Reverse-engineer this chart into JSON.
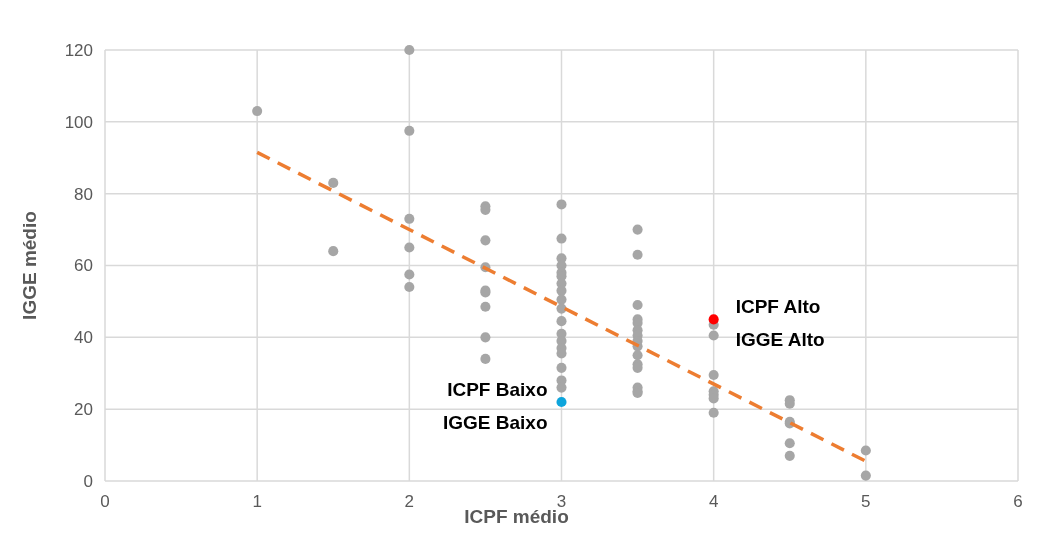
{
  "chart_data": {
    "type": "scatter",
    "xlabel": "ICPF médio",
    "ylabel": "IGGE médio",
    "xlim": [
      0,
      6
    ],
    "xticks": [
      0,
      1,
      2,
      3,
      4,
      5,
      6
    ],
    "ylim": [
      0,
      120
    ],
    "yticks": [
      0,
      20,
      40,
      60,
      80,
      100,
      120
    ],
    "grid": true,
    "marker": "circle",
    "series": [
      {
        "color": "#a6a6a6",
        "x": [
          1,
          1.5,
          1.5,
          2,
          2,
          2,
          2,
          2,
          2,
          2.5,
          2.5,
          2.5,
          2.5,
          2.5,
          2.5,
          2.5,
          2.5,
          2.5,
          3,
          3,
          3,
          3,
          3,
          3,
          3,
          3,
          3,
          3,
          3,
          3,
          3,
          3,
          3,
          3,
          3,
          3,
          3.5,
          3.5,
          3.5,
          3.5,
          3.5,
          3.5,
          3.5,
          3.5,
          3.5,
          3.5,
          3.5,
          3.5,
          3.5,
          3.5,
          3.5,
          4,
          4,
          4,
          4,
          4,
          4,
          4,
          4.5,
          4.5,
          4.5,
          4.5,
          4.5,
          4.5,
          5,
          5
        ],
        "values": [
          103,
          83,
          64,
          120,
          97.5,
          73,
          65,
          57.5,
          54,
          76.5,
          75.5,
          67,
          59.5,
          53,
          52.5,
          48.5,
          40,
          34,
          77,
          67.5,
          62,
          60,
          58,
          57,
          55,
          53,
          50.5,
          48,
          44.5,
          41,
          39,
          37,
          35.5,
          31.5,
          28,
          26,
          70,
          63,
          49,
          45,
          44,
          42,
          40.5,
          39,
          37.5,
          35,
          32.5,
          31.5,
          26,
          25,
          24.5,
          43.5,
          40.5,
          29.5,
          25,
          24,
          23,
          19,
          22.5,
          21.5,
          16.5,
          16,
          10.5,
          7,
          8.5,
          1.5
        ]
      },
      {
        "color": "#ff0000",
        "x": [
          4
        ],
        "values": [
          45
        ]
      },
      {
        "color": "#0ea5dc",
        "x": [
          3
        ],
        "values": [
          22
        ]
      },
      {
        "type": "line",
        "color": "#ed7d31",
        "line_style": "dashed",
        "marker": "none",
        "x": [
          1,
          5
        ],
        "values": [
          91.5,
          5.5
        ]
      }
    ],
    "annotations": [
      {
        "text": "ICPF Alto\nIGGE Alto",
        "x": 4,
        "y": 45
      },
      {
        "text": "ICPF Baixo\nIGGE Baixo",
        "x": 3,
        "y": 22
      }
    ]
  }
}
